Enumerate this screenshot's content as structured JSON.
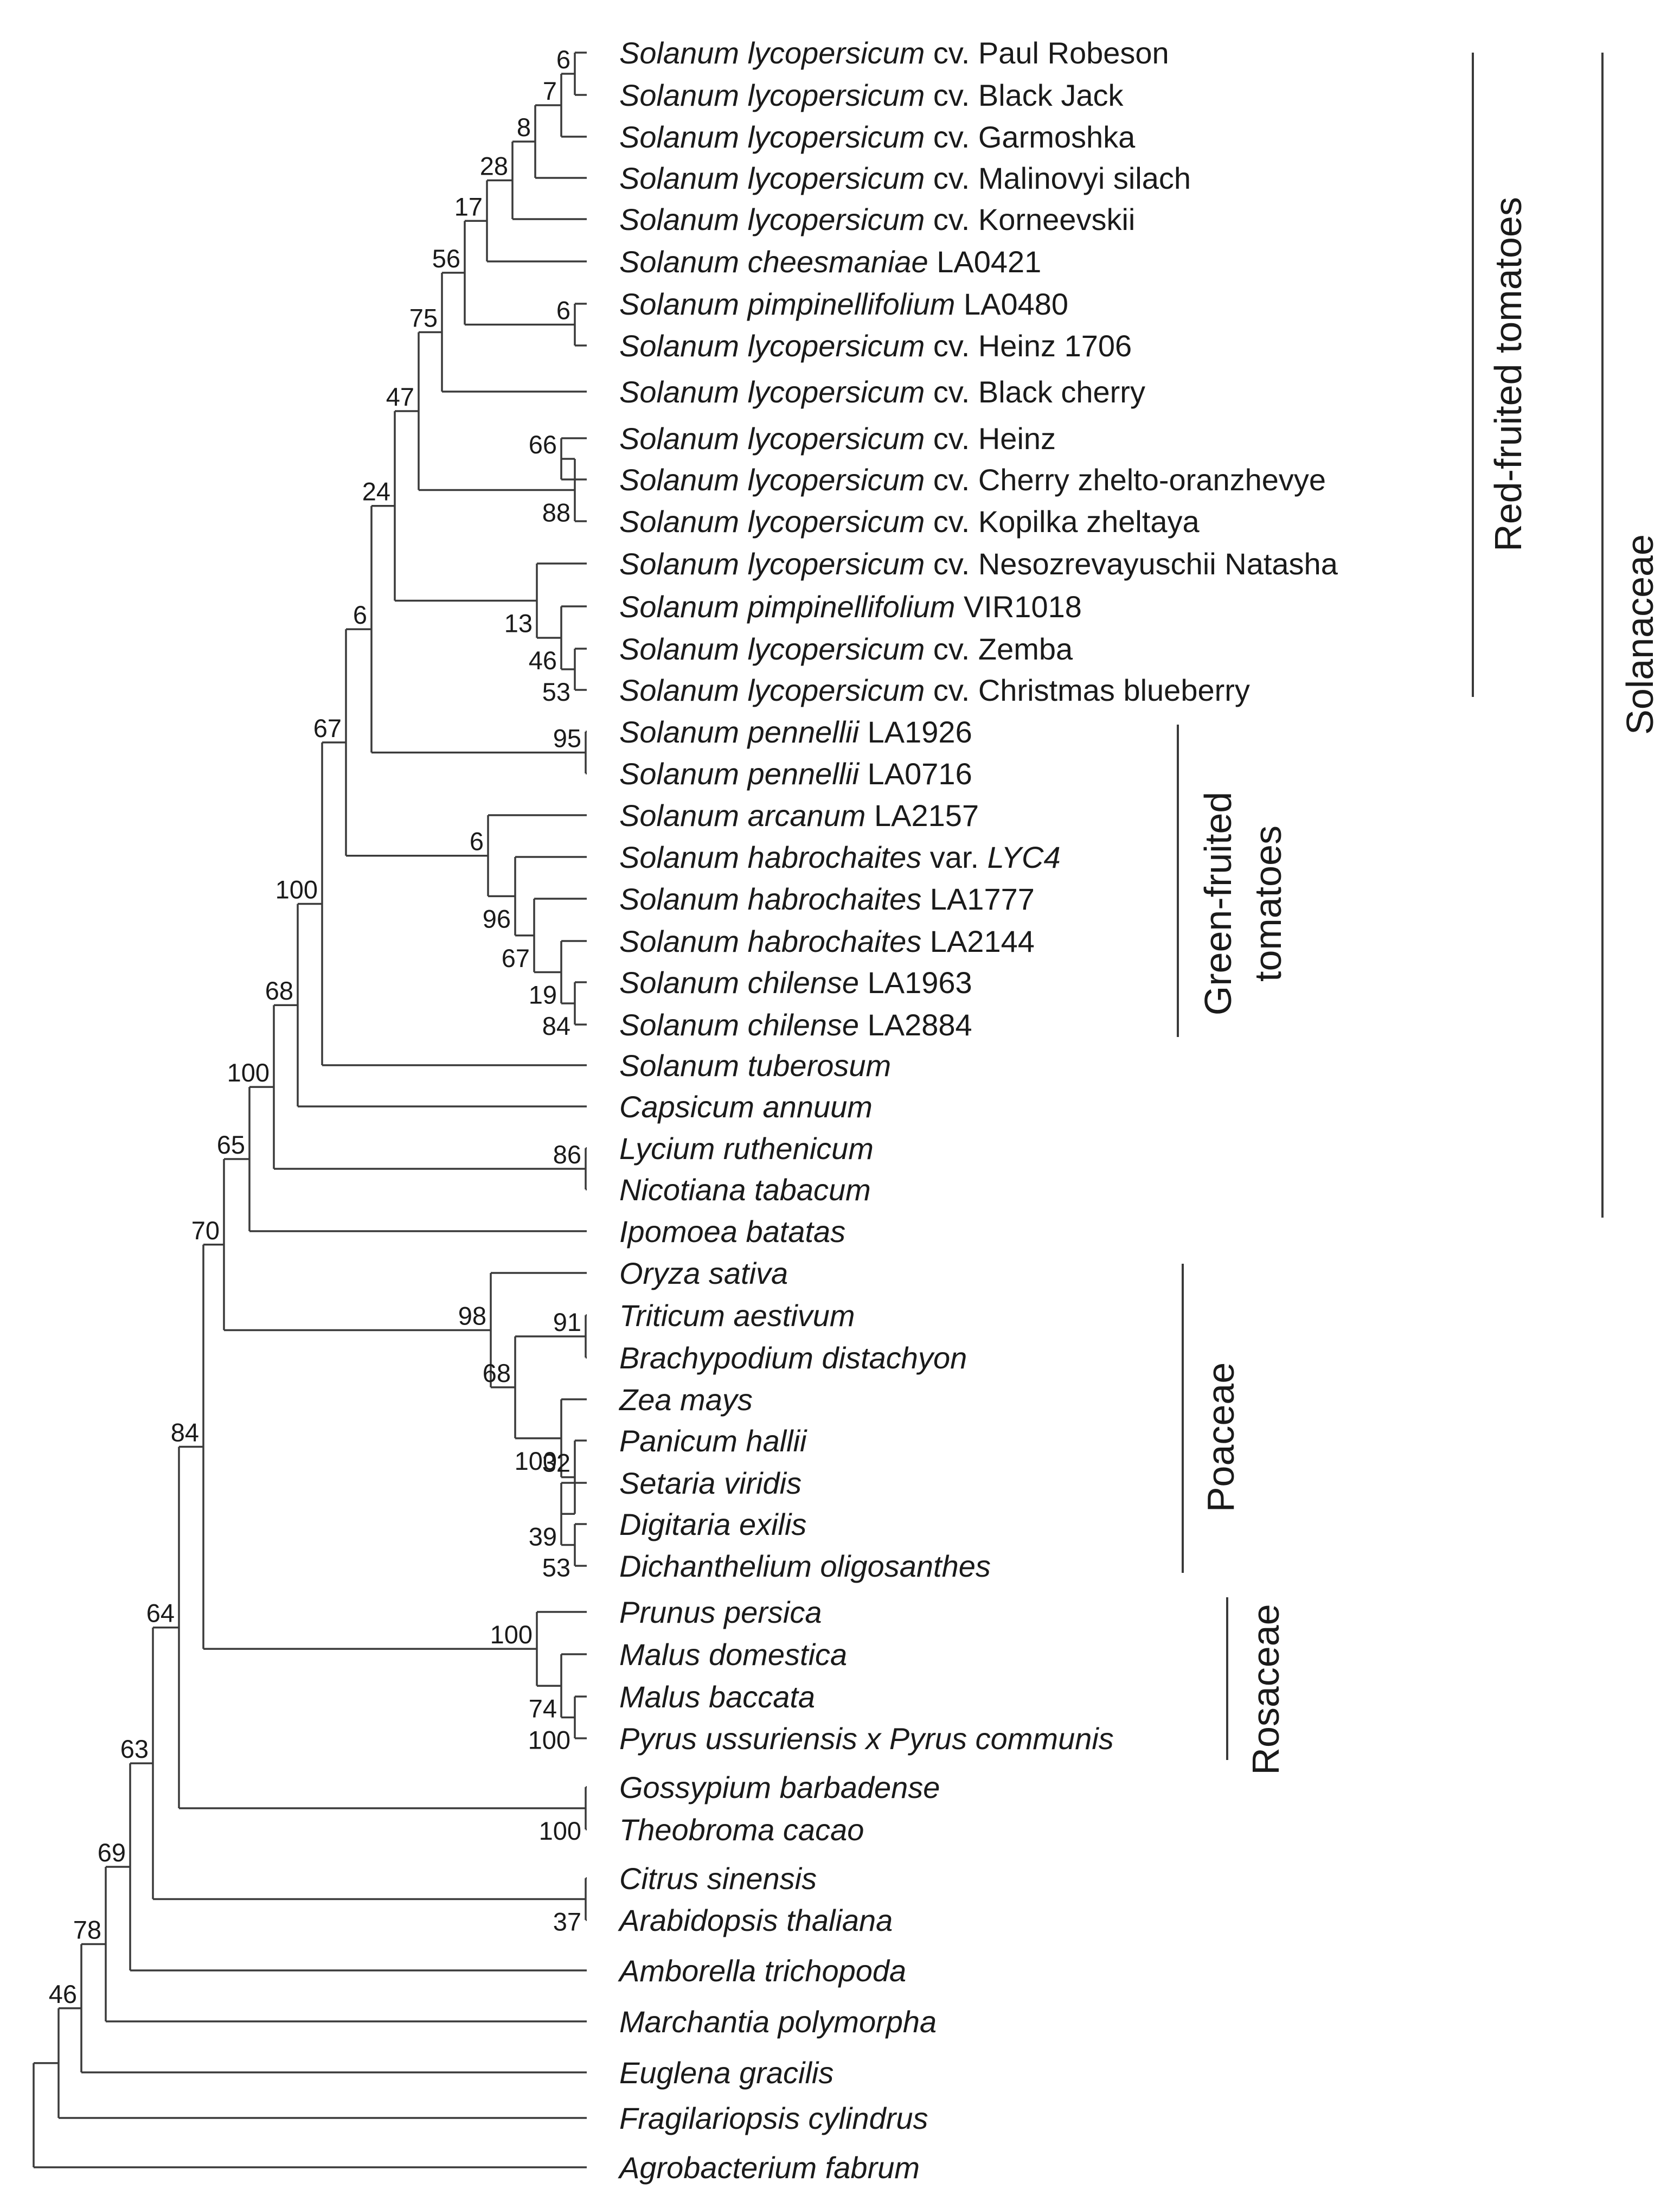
{
  "taxa": [
    {
      "italic": "Solanum lycopersicum",
      "plain": " cv. Paul Robeson"
    },
    {
      "italic": "Solanum lycopersicum",
      "plain": " cv. Black Jack"
    },
    {
      "italic": "Solanum lycopersicum",
      "plain": " cv. Garmoshka"
    },
    {
      "italic": "Solanum lycopersicum",
      "plain": " cv. Malinovyi silach"
    },
    {
      "italic": "Solanum lycopersicum",
      "plain": " cv. Korneevskii"
    },
    {
      "italic": "Solanum cheesmaniae",
      "plain": " LA0421"
    },
    {
      "italic": "Solanum pimpinellifolium",
      "plain": " LA0480"
    },
    {
      "italic": "Solanum lycopersicum",
      "plain": " cv. Heinz 1706"
    },
    {
      "italic": "Solanum lycopersicum",
      "plain": " cv. Black cherry"
    },
    {
      "italic": "Solanum lycopersicum",
      "plain": " cv. Heinz"
    },
    {
      "italic": "Solanum lycopersicum",
      "plain": " cv. Cherry zhelto-oranzhevye"
    },
    {
      "italic": "Solanum lycopersicum",
      "plain": " cv. Kopilka zheltaya"
    },
    {
      "italic": "Solanum lycopersicum",
      "plain": " cv. Nesozrevayuschii Natasha"
    },
    {
      "italic": "Solanum pimpinellifolium",
      "plain": " VIR1018"
    },
    {
      "italic": "Solanum lycopersicum",
      "plain": " cv. Zemba"
    },
    {
      "italic": "Solanum lycopersicum",
      "plain": " cv. Christmas blueberry"
    },
    {
      "italic": "Solanum pennellii",
      "plain": " LA1926"
    },
    {
      "italic": "Solanum pennellii",
      "plain": " LA0716"
    },
    {
      "italic": "Solanum arcanum",
      "plain": " LA2157"
    },
    {
      "italic": "Solanum habrochaites",
      "plain": " var. ",
      "italic2": "LYC4"
    },
    {
      "italic": "Solanum habrochaites",
      "plain": " LA1777"
    },
    {
      "italic": "Solanum habrochaites",
      "plain": " LA2144"
    },
    {
      "italic": "Solanum chilense",
      "plain": " LA1963"
    },
    {
      "italic": "Solanum chilense",
      "plain": " LA2884"
    },
    {
      "italic": "Solanum tuberosum"
    },
    {
      "italic": "Capsicum annuum"
    },
    {
      "italic": "Lycium ruthenicum"
    },
    {
      "italic": "Nicotiana tabacum"
    },
    {
      "italic": "Ipomoea batatas"
    },
    {
      "italic": "Oryza sativa"
    },
    {
      "italic": "Triticum aestivum"
    },
    {
      "italic": "Brachypodium distachyon"
    },
    {
      "italic": "Zea mays"
    },
    {
      "italic": "Panicum hallii"
    },
    {
      "italic": "Setaria viridis"
    },
    {
      "italic": "Digitaria exilis"
    },
    {
      "italic": "Dichanthelium oligosanthes"
    },
    {
      "italic": "Prunus persica"
    },
    {
      "italic": "Malus domestica"
    },
    {
      "italic": "Malus baccata"
    },
    {
      "italic": "Pyrus ussuriensis x Pyrus communis"
    },
    {
      "italic": "Gossypium barbadense"
    },
    {
      "italic": "Theobroma cacao"
    },
    {
      "italic": "Citrus sinensis"
    },
    {
      "italic": "Arabidopsis thaliana"
    },
    {
      "italic": "Amborella trichopoda"
    },
    {
      "italic": "Marchantia polymorpha"
    },
    {
      "italic": "Euglena gracilis"
    },
    {
      "italic": "Fragilariopsis cylindrus"
    },
    {
      "italic": "Agrobacterium fabrum"
    }
  ],
  "bootstrap": {
    "n1": "6",
    "n2": "7",
    "n3": "8",
    "n4": "28",
    "n5": "17",
    "n6": "6",
    "n7": "56",
    "n8": "75",
    "n9": "66",
    "n10": "88",
    "n11": "47",
    "n12": "53",
    "n13": "46",
    "n14": "13",
    "n15": "24",
    "n16": "6",
    "n17": "95",
    "n18": "84",
    "n19": "19",
    "n20": "67",
    "n21": "96",
    "n22": "6",
    "n23": "67",
    "n24": "100",
    "n25": "68",
    "n26": "86",
    "n27": "100",
    "n28": "65",
    "n29": "91",
    "n30": "53",
    "n31": "39",
    "n32": "32",
    "n33": "100",
    "n34": "68",
    "n35": "98",
    "n36": "70",
    "n37": "100",
    "n38": "74",
    "n39": "100",
    "n40": "84",
    "n41": "100",
    "n42": "37",
    "n43": "64",
    "n44": "63",
    "n45": "69",
    "n46": "78",
    "n47": "46"
  },
  "groups": {
    "red_fruited": "Red-fruited tomatoes",
    "green_fruited_line1": "Green-fruited",
    "green_fruited_line2": "tomatoes",
    "poaceae": "Poaceae",
    "rosaceae": "Rosaceae",
    "solanaceae": "Solanaceae"
  }
}
